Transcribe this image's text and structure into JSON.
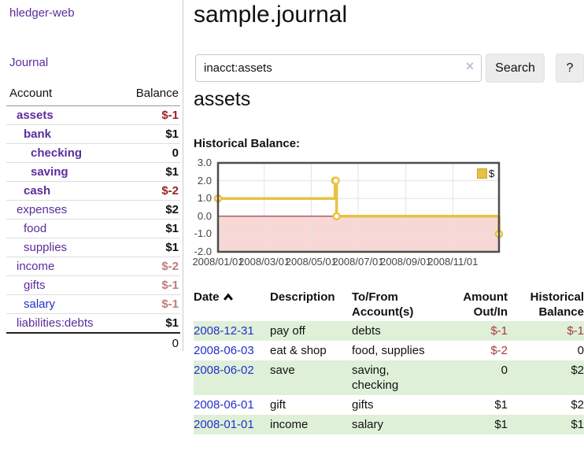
{
  "colors": {
    "link_purple": "#5c2d9c",
    "link_blue": "#2330cc",
    "negative_red": "#9e2020",
    "negative_muted_red": "#c07c7c",
    "register_negative_red": "#a33b3b",
    "row_stripe_green": "#dff0d8",
    "chart_line_gold": "#e8c240",
    "chart_negative_pink": "#f8d7d7",
    "chart_zero_line_red": "#8b1a1a"
  },
  "sidebar": {
    "brand": "hledger-web",
    "journal_link": "Journal",
    "accounts": {
      "header": {
        "account": "Account",
        "balance": "Balance"
      },
      "rows": [
        {
          "account": "assets",
          "balance": "$-1",
          "depth": 1,
          "matched": true,
          "balance_tone": "neg"
        },
        {
          "account": "bank",
          "balance": "$1",
          "depth": 2,
          "matched": true,
          "balance_tone": ""
        },
        {
          "account": "checking",
          "balance": "0",
          "depth": 3,
          "matched": true,
          "balance_tone": ""
        },
        {
          "account": "saving",
          "balance": "$1",
          "depth": 3,
          "matched": true,
          "balance_tone": ""
        },
        {
          "account": "cash",
          "balance": "$-2",
          "depth": 2,
          "matched": true,
          "balance_tone": "neg"
        },
        {
          "account": "expenses",
          "balance": "$2",
          "depth": 1,
          "matched": false,
          "balance_tone": ""
        },
        {
          "account": "food",
          "balance": "$1",
          "depth": 2,
          "matched": false,
          "balance_tone": ""
        },
        {
          "account": "supplies",
          "balance": "$1",
          "depth": 2,
          "matched": false,
          "balance_tone": ""
        },
        {
          "account": "income",
          "balance": "$-2",
          "depth": 1,
          "matched": false,
          "balance_tone": "neg-muted"
        },
        {
          "account": "gifts",
          "balance": "$-1",
          "depth": 2,
          "matched": false,
          "balance_tone": "neg-muted"
        },
        {
          "account": "salary",
          "balance": "$-1",
          "depth": 2,
          "matched": false,
          "balance_tone": "neg-muted",
          "link_tone": "unvisited"
        },
        {
          "account": "liabilities:debts",
          "balance": "$1",
          "depth": 1,
          "matched": false,
          "balance_tone": ""
        }
      ],
      "total": "0"
    }
  },
  "main": {
    "title": "sample.journal",
    "search": {
      "value": "inacct:assets",
      "clear_icon": "×",
      "button": "Search",
      "help_button": "?"
    },
    "account_heading": "assets",
    "chart_label": "Historical Balance:"
  },
  "chart_data": {
    "type": "line",
    "step": true,
    "title": "Historical Balance",
    "series": [
      {
        "name": "$",
        "points": [
          [
            "2008-01-01",
            1
          ],
          [
            "2008-06-01",
            2
          ],
          [
            "2008-06-02",
            2
          ],
          [
            "2008-06-03",
            0
          ],
          [
            "2008-12-31",
            -1
          ]
        ]
      }
    ],
    "xlim": [
      "2008-01-01",
      "2008-12-31"
    ],
    "ylim": [
      -2,
      3
    ],
    "y_ticks": [
      3.0,
      2.0,
      1.0,
      0.0,
      -1.0,
      -2.0
    ],
    "x_ticks": [
      "2008/01/01",
      "2008/03/01",
      "2008/05/01",
      "2008/07/01",
      "2008/09/01",
      "2008/11/01"
    ],
    "legend": {
      "label": "$",
      "position": "top-right"
    },
    "grid": true
  },
  "register": {
    "headers": [
      "Date",
      "Description",
      "To/From Account(s)",
      "Amount Out/In",
      "Historical Balance"
    ],
    "sort": {
      "column": "Date",
      "direction": "ascending"
    },
    "rows": [
      {
        "date": "2008-12-31",
        "description": "pay off",
        "accounts": "debts",
        "amount": "$-1",
        "amount_neg": true,
        "balance": "$-1",
        "balance_neg": true
      },
      {
        "date": "2008-06-03",
        "description": "eat & shop",
        "accounts": "food, supplies",
        "amount": "$-2",
        "amount_neg": true,
        "balance": "0",
        "balance_neg": false
      },
      {
        "date": "2008-06-02",
        "description": "save",
        "accounts": "saving, checking",
        "amount": "0",
        "amount_neg": false,
        "balance": "$2",
        "balance_neg": false
      },
      {
        "date": "2008-06-01",
        "description": "gift",
        "accounts": "gifts",
        "amount": "$1",
        "amount_neg": false,
        "balance": "$2",
        "balance_neg": false
      },
      {
        "date": "2008-01-01",
        "description": "income",
        "accounts": "salary",
        "amount": "$1",
        "amount_neg": false,
        "balance": "$1",
        "balance_neg": false
      }
    ]
  }
}
